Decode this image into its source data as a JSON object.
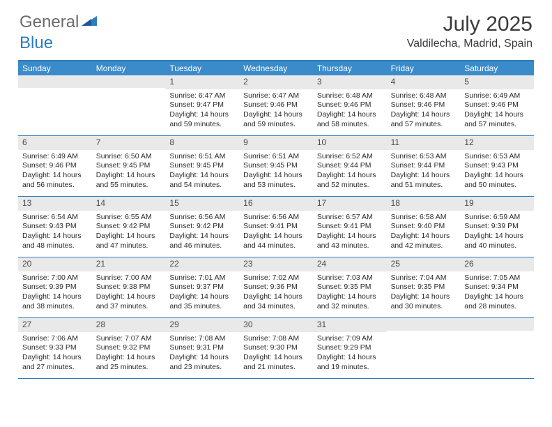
{
  "logo": {
    "part1": "General",
    "part2": "Blue"
  },
  "title": "July 2025",
  "location": "Valdilecha, Madrid, Spain",
  "colors": {
    "header_bg": "#3a8bca",
    "border": "#2d7cc0",
    "daynum_bg": "#e9e9e9",
    "text": "#2a2a2a",
    "logo_gray": "#6b6b6b",
    "logo_blue": "#2d7cc0"
  },
  "day_names": [
    "Sunday",
    "Monday",
    "Tuesday",
    "Wednesday",
    "Thursday",
    "Friday",
    "Saturday"
  ],
  "weeks": [
    [
      null,
      null,
      {
        "n": "1",
        "sr": "Sunrise: 6:47 AM",
        "ss": "Sunset: 9:47 PM",
        "d1": "Daylight: 14 hours",
        "d2": "and 59 minutes."
      },
      {
        "n": "2",
        "sr": "Sunrise: 6:47 AM",
        "ss": "Sunset: 9:46 PM",
        "d1": "Daylight: 14 hours",
        "d2": "and 59 minutes."
      },
      {
        "n": "3",
        "sr": "Sunrise: 6:48 AM",
        "ss": "Sunset: 9:46 PM",
        "d1": "Daylight: 14 hours",
        "d2": "and 58 minutes."
      },
      {
        "n": "4",
        "sr": "Sunrise: 6:48 AM",
        "ss": "Sunset: 9:46 PM",
        "d1": "Daylight: 14 hours",
        "d2": "and 57 minutes."
      },
      {
        "n": "5",
        "sr": "Sunrise: 6:49 AM",
        "ss": "Sunset: 9:46 PM",
        "d1": "Daylight: 14 hours",
        "d2": "and 57 minutes."
      }
    ],
    [
      {
        "n": "6",
        "sr": "Sunrise: 6:49 AM",
        "ss": "Sunset: 9:46 PM",
        "d1": "Daylight: 14 hours",
        "d2": "and 56 minutes."
      },
      {
        "n": "7",
        "sr": "Sunrise: 6:50 AM",
        "ss": "Sunset: 9:45 PM",
        "d1": "Daylight: 14 hours",
        "d2": "and 55 minutes."
      },
      {
        "n": "8",
        "sr": "Sunrise: 6:51 AM",
        "ss": "Sunset: 9:45 PM",
        "d1": "Daylight: 14 hours",
        "d2": "and 54 minutes."
      },
      {
        "n": "9",
        "sr": "Sunrise: 6:51 AM",
        "ss": "Sunset: 9:45 PM",
        "d1": "Daylight: 14 hours",
        "d2": "and 53 minutes."
      },
      {
        "n": "10",
        "sr": "Sunrise: 6:52 AM",
        "ss": "Sunset: 9:44 PM",
        "d1": "Daylight: 14 hours",
        "d2": "and 52 minutes."
      },
      {
        "n": "11",
        "sr": "Sunrise: 6:53 AM",
        "ss": "Sunset: 9:44 PM",
        "d1": "Daylight: 14 hours",
        "d2": "and 51 minutes."
      },
      {
        "n": "12",
        "sr": "Sunrise: 6:53 AM",
        "ss": "Sunset: 9:43 PM",
        "d1": "Daylight: 14 hours",
        "d2": "and 50 minutes."
      }
    ],
    [
      {
        "n": "13",
        "sr": "Sunrise: 6:54 AM",
        "ss": "Sunset: 9:43 PM",
        "d1": "Daylight: 14 hours",
        "d2": "and 48 minutes."
      },
      {
        "n": "14",
        "sr": "Sunrise: 6:55 AM",
        "ss": "Sunset: 9:42 PM",
        "d1": "Daylight: 14 hours",
        "d2": "and 47 minutes."
      },
      {
        "n": "15",
        "sr": "Sunrise: 6:56 AM",
        "ss": "Sunset: 9:42 PM",
        "d1": "Daylight: 14 hours",
        "d2": "and 46 minutes."
      },
      {
        "n": "16",
        "sr": "Sunrise: 6:56 AM",
        "ss": "Sunset: 9:41 PM",
        "d1": "Daylight: 14 hours",
        "d2": "and 44 minutes."
      },
      {
        "n": "17",
        "sr": "Sunrise: 6:57 AM",
        "ss": "Sunset: 9:41 PM",
        "d1": "Daylight: 14 hours",
        "d2": "and 43 minutes."
      },
      {
        "n": "18",
        "sr": "Sunrise: 6:58 AM",
        "ss": "Sunset: 9:40 PM",
        "d1": "Daylight: 14 hours",
        "d2": "and 42 minutes."
      },
      {
        "n": "19",
        "sr": "Sunrise: 6:59 AM",
        "ss": "Sunset: 9:39 PM",
        "d1": "Daylight: 14 hours",
        "d2": "and 40 minutes."
      }
    ],
    [
      {
        "n": "20",
        "sr": "Sunrise: 7:00 AM",
        "ss": "Sunset: 9:39 PM",
        "d1": "Daylight: 14 hours",
        "d2": "and 38 minutes."
      },
      {
        "n": "21",
        "sr": "Sunrise: 7:00 AM",
        "ss": "Sunset: 9:38 PM",
        "d1": "Daylight: 14 hours",
        "d2": "and 37 minutes."
      },
      {
        "n": "22",
        "sr": "Sunrise: 7:01 AM",
        "ss": "Sunset: 9:37 PM",
        "d1": "Daylight: 14 hours",
        "d2": "and 35 minutes."
      },
      {
        "n": "23",
        "sr": "Sunrise: 7:02 AM",
        "ss": "Sunset: 9:36 PM",
        "d1": "Daylight: 14 hours",
        "d2": "and 34 minutes."
      },
      {
        "n": "24",
        "sr": "Sunrise: 7:03 AM",
        "ss": "Sunset: 9:35 PM",
        "d1": "Daylight: 14 hours",
        "d2": "and 32 minutes."
      },
      {
        "n": "25",
        "sr": "Sunrise: 7:04 AM",
        "ss": "Sunset: 9:35 PM",
        "d1": "Daylight: 14 hours",
        "d2": "and 30 minutes."
      },
      {
        "n": "26",
        "sr": "Sunrise: 7:05 AM",
        "ss": "Sunset: 9:34 PM",
        "d1": "Daylight: 14 hours",
        "d2": "and 28 minutes."
      }
    ],
    [
      {
        "n": "27",
        "sr": "Sunrise: 7:06 AM",
        "ss": "Sunset: 9:33 PM",
        "d1": "Daylight: 14 hours",
        "d2": "and 27 minutes."
      },
      {
        "n": "28",
        "sr": "Sunrise: 7:07 AM",
        "ss": "Sunset: 9:32 PM",
        "d1": "Daylight: 14 hours",
        "d2": "and 25 minutes."
      },
      {
        "n": "29",
        "sr": "Sunrise: 7:08 AM",
        "ss": "Sunset: 9:31 PM",
        "d1": "Daylight: 14 hours",
        "d2": "and 23 minutes."
      },
      {
        "n": "30",
        "sr": "Sunrise: 7:08 AM",
        "ss": "Sunset: 9:30 PM",
        "d1": "Daylight: 14 hours",
        "d2": "and 21 minutes."
      },
      {
        "n": "31",
        "sr": "Sunrise: 7:09 AM",
        "ss": "Sunset: 9:29 PM",
        "d1": "Daylight: 14 hours",
        "d2": "and 19 minutes."
      },
      null,
      null
    ]
  ]
}
